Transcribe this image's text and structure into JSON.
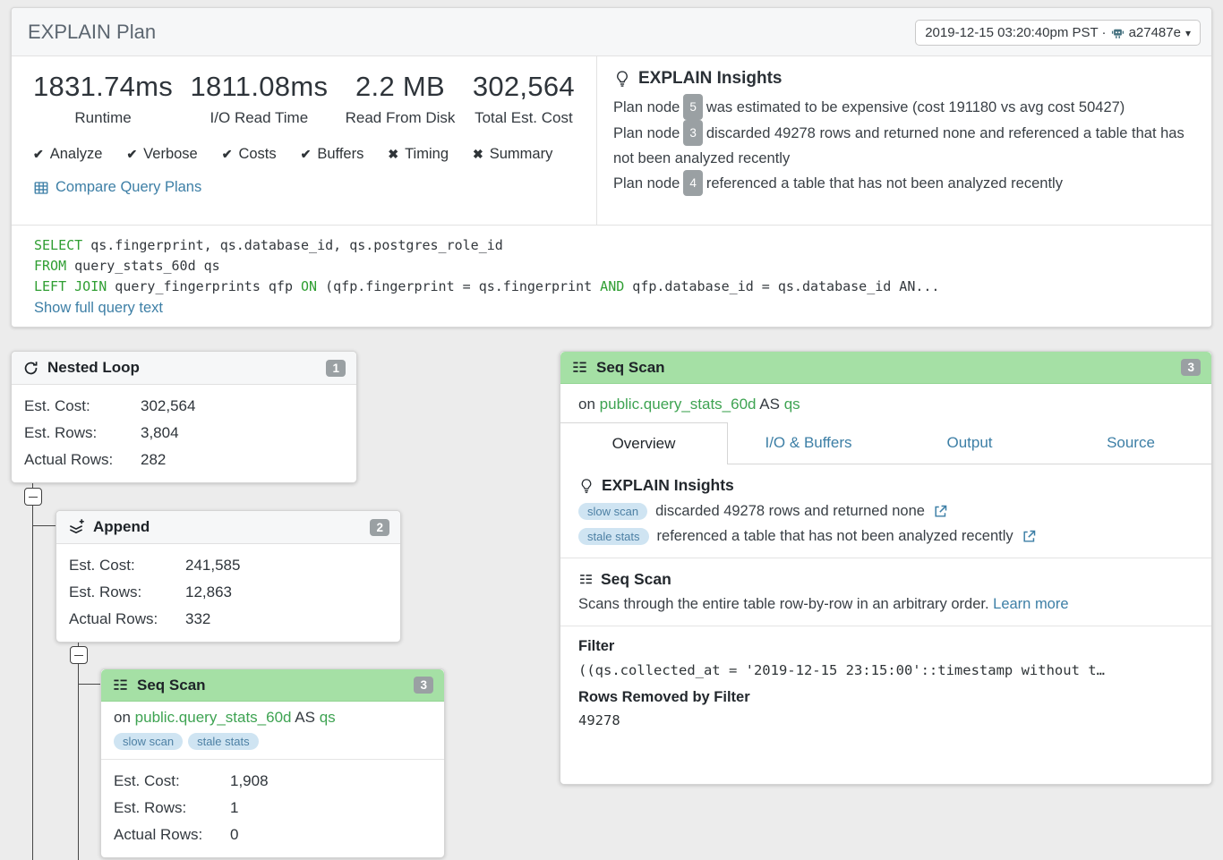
{
  "header": {
    "title": "EXPLAIN Plan",
    "timestamp_label": "2019-12-15 03:20:40pm PST ·",
    "commit_ref": "a27487e",
    "caret": "▾"
  },
  "summary": {
    "stats": [
      {
        "value": "1831.74ms",
        "label": "Runtime"
      },
      {
        "value": "1811.08ms",
        "label": "I/O Read Time"
      },
      {
        "value": "2.2 MB",
        "label": "Read From Disk"
      },
      {
        "value": "302,564",
        "label": "Total Est. Cost"
      }
    ],
    "flags": [
      {
        "mark": "✔",
        "label": "Analyze",
        "enabled": true
      },
      {
        "mark": "✔",
        "label": "Verbose",
        "enabled": true
      },
      {
        "mark": "✔",
        "label": "Costs",
        "enabled": true
      },
      {
        "mark": "✔",
        "label": "Buffers",
        "enabled": true
      },
      {
        "mark": "✖",
        "label": "Timing",
        "enabled": false
      },
      {
        "mark": "✖",
        "label": "Summary",
        "enabled": false
      }
    ],
    "compare_link": "Compare Query Plans"
  },
  "insights": {
    "title": "EXPLAIN Insights",
    "items": [
      {
        "prefix": "Plan node",
        "node": "5",
        "text": "was estimated to be expensive (cost 191180 vs avg cost 50427)"
      },
      {
        "prefix": "Plan node",
        "node": "3",
        "text": "discarded 49278 rows and returned none and referenced a table that has not been analyzed recently"
      },
      {
        "prefix": "Plan node",
        "node": "4",
        "text": "referenced a table that has not been analyzed recently"
      }
    ]
  },
  "query": {
    "lines": [
      {
        "parts": [
          {
            "text": "SELECT",
            "kw": true
          },
          {
            "text": " qs.fingerprint, qs.database_id, qs.postgres_role_id",
            "kw": false
          }
        ]
      },
      {
        "parts": [
          {
            "text": "FROM",
            "kw": true
          },
          {
            "text": " query_stats_60d qs",
            "kw": false
          }
        ]
      },
      {
        "parts": [
          {
            "text": "LEFT JOIN",
            "kw": true
          },
          {
            "text": " query_fingerprints qfp ",
            "kw": false
          },
          {
            "text": "ON",
            "kw": true
          },
          {
            "text": " (qfp.fingerprint = qs.fingerprint ",
            "kw": false
          },
          {
            "text": "AND",
            "kw": true
          },
          {
            "text": " qfp.database_id = qs.database_id AN...",
            "kw": false
          }
        ]
      }
    ],
    "show_more": "Show full query text"
  },
  "nodes": [
    {
      "title": "Nested Loop",
      "badge": "1",
      "rows": [
        {
          "label": "Est. Cost:",
          "value": "302,564"
        },
        {
          "label": "Est. Rows:",
          "value": "3,804"
        },
        {
          "label": "Actual Rows:",
          "value": "282"
        }
      ]
    },
    {
      "title": "Append",
      "badge": "2",
      "rows": [
        {
          "label": "Est. Cost:",
          "value": "241,585"
        },
        {
          "label": "Est. Rows:",
          "value": "12,863"
        },
        {
          "label": "Actual Rows:",
          "value": "332"
        }
      ]
    },
    {
      "title": "Seq Scan",
      "badge": "3",
      "on_prefix": "on",
      "table": "public.query_stats_60d",
      "as_kw": "AS",
      "alias": "qs",
      "tags": [
        "slow scan",
        "stale stats"
      ],
      "rows": [
        {
          "label": "Est. Cost:",
          "value": "1,908"
        },
        {
          "label": "Est. Rows:",
          "value": "1"
        },
        {
          "label": "Actual Rows:",
          "value": "0"
        }
      ]
    }
  ],
  "panel": {
    "title": "Seq Scan",
    "badge": "3",
    "on_prefix": "on",
    "table": "public.query_stats_60d",
    "as_kw": "AS",
    "alias": "qs",
    "tabs": [
      {
        "label": "Overview",
        "active": true
      },
      {
        "label": "I/O & Buffers",
        "active": false
      },
      {
        "label": "Output",
        "active": false
      },
      {
        "label": "Source",
        "active": false
      }
    ],
    "insights": {
      "title": "EXPLAIN Insights",
      "items": [
        {
          "tag": "slow scan",
          "text": "discarded 49278 rows and returned none"
        },
        {
          "tag": "stale stats",
          "text": "referenced a table that has not been analyzed recently"
        }
      ]
    },
    "about": {
      "title": "Seq Scan",
      "description": "Scans through the entire table row-by-row in an arbitrary order.",
      "link": "Learn more"
    },
    "filter": {
      "title": "Filter",
      "expression": "((qs.collected_at = '2019-12-15 23:15:00'::timestamp without t…",
      "rows_removed_title": "Rows Removed by Filter",
      "rows_removed": "49278"
    }
  },
  "colors": {
    "accent_green": "#a5e0a5",
    "link_blue": "#3d7fa6",
    "keyword_green": "#2f9e32",
    "badge_gray": "#9aa0a3",
    "tag_bg": "#cfe4f2",
    "tag_text": "#4d80a4"
  }
}
